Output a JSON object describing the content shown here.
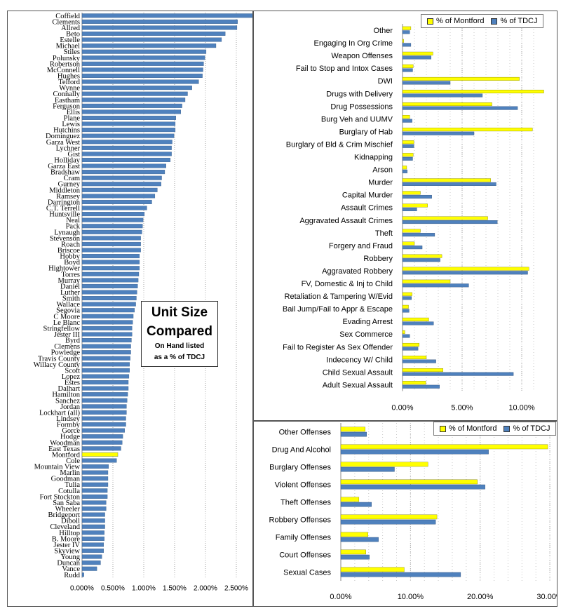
{
  "colors": {
    "tdcj": "#4f81bd",
    "montford": "#ffff00"
  },
  "callout": {
    "title_line1": "Unit Size",
    "title_line2": "Compared",
    "sub_line1": "On Hand listed",
    "sub_line2": "as a % of TDCJ"
  },
  "legend": {
    "montford": "% of Montford",
    "tdcj": "% of TDCJ"
  },
  "chart_data": [
    {
      "type": "bar",
      "orientation": "horizontal",
      "xlim": [
        0,
        0.0275
      ],
      "tick_labels": [
        "0.000%",
        "0.500%",
        "1.000%",
        "1.500%",
        "2.000%",
        "2.500%"
      ],
      "grid": true,
      "highlight": "Montford",
      "categories": [
        "Coffield",
        "Clements",
        "Allred",
        "Beto",
        "Estelle",
        "Michael",
        "Stiles",
        "Polunsky",
        "Robertson",
        "McConnell",
        "Hughes",
        "Telford",
        "Wynne",
        "Connally",
        "Eastham",
        "Ferguson",
        "Ellis",
        "Plane",
        "Lewis",
        "Hutchins",
        "Dominguez",
        "Garza West",
        "Lychner",
        "Gist",
        "Holliday",
        "Garza East",
        "Bradshaw",
        "Cram",
        "Gurney",
        "Middleton",
        "Ramsey",
        "Darrington",
        "C.T. Terrell",
        "Huntsville",
        "Neal",
        "Pack",
        "Lynaugh",
        "Stevenson",
        "Roach",
        "Briscoe",
        "Hobby",
        "Boyd",
        "Hightower",
        "Torres",
        "Murray",
        "Daniel",
        "Luther",
        "Smith",
        "Wallace",
        "Segovia",
        "C Moore",
        "Le Blanc",
        "Stringfellow",
        "Jester III",
        "Byrd",
        "Clemens",
        "Powledge",
        "Travis County",
        "Willacy County",
        "Scott",
        "Lopez",
        "Estes",
        "Dalhart",
        "Hamilton",
        "Sanchez",
        "Jordan",
        "Lockhart (all)",
        "Lindsey",
        "Formby",
        "Gorce",
        "Hodge",
        "Woodman",
        "East Texas",
        "Montford",
        "Cole",
        "Mountain View",
        "Marlin",
        "Goodman",
        "Tulia",
        "Cotulla",
        "Fort Stockton",
        "San Saba",
        "Wheeler",
        "Bridgeport",
        "Diboll",
        "Cleveland",
        "Hilltop",
        "B. Moore",
        "Jester IV",
        "Skyview",
        "Young",
        "Duncan",
        "Vance",
        "Rudd"
      ],
      "values": [
        0.0278,
        0.0252,
        0.0251,
        0.0232,
        0.0226,
        0.0217,
        0.0201,
        0.0199,
        0.0197,
        0.0196,
        0.0195,
        0.0189,
        0.0178,
        0.0171,
        0.0167,
        0.0162,
        0.016,
        0.0152,
        0.0151,
        0.0151,
        0.0149,
        0.0146,
        0.0145,
        0.0145,
        0.0143,
        0.0136,
        0.0134,
        0.0129,
        0.0128,
        0.0122,
        0.0118,
        0.0113,
        0.0105,
        0.0101,
        0.0099,
        0.0098,
        0.0097,
        0.0095,
        0.0095,
        0.0095,
        0.0093,
        0.0093,
        0.0093,
        0.0092,
        0.0091,
        0.009,
        0.0089,
        0.0088,
        0.0087,
        0.0085,
        0.0083,
        0.0082,
        0.0081,
        0.0081,
        0.008,
        0.0079,
        0.0079,
        0.0078,
        0.0077,
        0.0077,
        0.0076,
        0.0075,
        0.0075,
        0.0074,
        0.0073,
        0.0072,
        0.0072,
        0.0071,
        0.0071,
        0.0069,
        0.0066,
        0.0065,
        0.0063,
        0.0058,
        0.0056,
        0.0043,
        0.0042,
        0.0042,
        0.0042,
        0.0041,
        0.0041,
        0.0039,
        0.0039,
        0.0037,
        0.0037,
        0.0037,
        0.0036,
        0.0036,
        0.0035,
        0.0035,
        0.0032,
        0.003,
        0.0024,
        0.0003
      ]
    },
    {
      "type": "bar",
      "orientation": "horizontal",
      "xlim": [
        0,
        0.12
      ],
      "tick_labels": [
        "0.00%",
        "5.00%",
        "10.00%"
      ],
      "grid": true,
      "legend": "top-right",
      "categories": [
        "Other",
        "Engaging In Org Crime",
        "Weapon Offenses",
        "Fail to Stop and Intox Cases",
        "DWI",
        "Drugs with Delivery",
        "Drug Possessions",
        "Burg Veh and UUMV",
        "Burglary of Hab",
        "Burglary of Bld & Crim Mischief",
        "Kidnapping",
        "Arson",
        "Murder",
        "Capital Murder",
        "Assault Crimes",
        "Aggravated Assault Crimes",
        "Theft",
        "Forgery and Fraud",
        "Robbery",
        "Aggravated Robbery",
        "FV, Domestic & Inj to Child",
        "Retaliation & Tampering  W/Evid",
        "Bail Jump/Fail to Appr & Escape",
        "Evading Arrest",
        "Sex Commerce",
        "Fail to Register As Sex Offender",
        "Indecency W/ Child",
        "Child Sexual Assault",
        "Adult Sexual Assault"
      ],
      "series": [
        {
          "name": "% of Montford",
          "values": [
            0.007,
            0.001,
            0.0255,
            0.009,
            0.098,
            0.1185,
            0.075,
            0.006,
            0.109,
            0.0095,
            0.009,
            0.0035,
            0.074,
            0.015,
            0.021,
            0.0715,
            0.015,
            0.01,
            0.033,
            0.106,
            0.04,
            0.008,
            0.005,
            0.022,
            0.002,
            0.014,
            0.02,
            0.034,
            0.0195
          ]
        },
        {
          "name": "% of TDCJ",
          "values": [
            0.006,
            0.007,
            0.024,
            0.0085,
            0.04,
            0.067,
            0.0965,
            0.008,
            0.06,
            0.0095,
            0.0085,
            0.004,
            0.0785,
            0.0245,
            0.012,
            0.0795,
            0.027,
            0.0165,
            0.0315,
            0.105,
            0.0555,
            0.0075,
            0.0055,
            0.026,
            0.006,
            0.013,
            0.028,
            0.093,
            0.031
          ]
        }
      ]
    },
    {
      "type": "bar",
      "orientation": "horizontal",
      "xlim": [
        0,
        0.31
      ],
      "tick_labels": [
        "0.00%",
        "10.00%",
        "20.00%",
        "30.00%"
      ],
      "grid": true,
      "legend": "top-right",
      "categories": [
        "Other Offenses",
        "Drug And Alcohol",
        "Burglary Offenses",
        "Violent Offenses",
        "Theft Offenses",
        "Robbery Offenses",
        "Family Offenses",
        "Court Offenses",
        "Sexual Cases"
      ],
      "series": [
        {
          "name": "% of Montford",
          "values": [
            0.035,
            0.297,
            0.125,
            0.196,
            0.026,
            0.138,
            0.039,
            0.036,
            0.091
          ]
        },
        {
          "name": "% of TDCJ",
          "values": [
            0.037,
            0.212,
            0.077,
            0.207,
            0.044,
            0.136,
            0.054,
            0.041,
            0.172
          ]
        }
      ]
    }
  ]
}
